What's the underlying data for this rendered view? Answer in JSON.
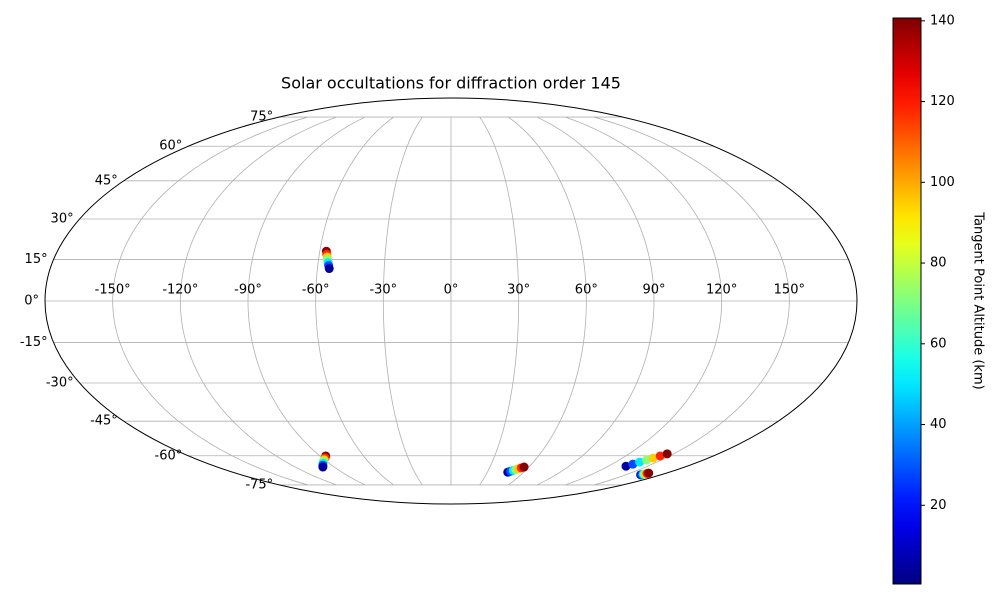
{
  "chart_data": {
    "type": "scatter",
    "projection": "mollweide",
    "title": "Solar occultations for diffraction order 145",
    "grid": true,
    "xlim": [
      -180,
      180
    ],
    "ylim": [
      -90,
      90
    ],
    "xticks": [
      {
        "value": -150,
        "label": "-150°"
      },
      {
        "value": -120,
        "label": "-120°"
      },
      {
        "value": -90,
        "label": "-90°"
      },
      {
        "value": -60,
        "label": "-60°"
      },
      {
        "value": -30,
        "label": "-30°"
      },
      {
        "value": 0,
        "label": "0°"
      },
      {
        "value": 30,
        "label": "30°"
      },
      {
        "value": 60,
        "label": "60°"
      },
      {
        "value": 90,
        "label": "90°"
      },
      {
        "value": 120,
        "label": "120°"
      },
      {
        "value": 150,
        "label": "150°"
      }
    ],
    "yticks": [
      {
        "value": -75,
        "label": "-75°"
      },
      {
        "value": -60,
        "label": "-60°"
      },
      {
        "value": -45,
        "label": "-45°"
      },
      {
        "value": -30,
        "label": "-30°"
      },
      {
        "value": -15,
        "label": "-15°"
      },
      {
        "value": 0,
        "label": "0°"
      },
      {
        "value": 15,
        "label": "15°"
      },
      {
        "value": 30,
        "label": "30°"
      },
      {
        "value": 45,
        "label": "45°"
      },
      {
        "value": 60,
        "label": "60°"
      },
      {
        "value": 75,
        "label": "75°"
      }
    ],
    "colormap": "jet",
    "colorbar": {
      "label": "Tangent Point Altitude (km)",
      "clim": [
        0.5,
        140.7
      ],
      "ticks": [
        20,
        40,
        60,
        80,
        100,
        120,
        140
      ]
    },
    "series": [
      {
        "x": [
          -57,
          -56.6,
          -56.2,
          -55.9,
          -55.5,
          -55.1,
          -54.7
        ],
        "y": [
          18,
          16.9,
          15.9,
          14.9,
          13.8,
          12.8,
          11.7
        ],
        "c": [
          140,
          118,
          95,
          72,
          50,
          28,
          5
        ]
      },
      {
        "x": [
          -86,
          -88,
          -90.3,
          -92.4,
          -94.5,
          -96.6,
          -98.7
        ],
        "y": [
          -60.1,
          -61,
          -61.9,
          -62.7,
          -63.6,
          -64.5,
          -65.4
        ],
        "c": [
          140,
          118,
          95,
          72,
          50,
          28,
          5
        ]
      },
      {
        "x": [
          46.8,
          48.4,
          50,
          51.6,
          53.1,
          54.7,
          56.3
        ],
        "y": [
          -68,
          -67.6,
          -67.1,
          -66.7,
          -66.3,
          -65.8,
          -65.4
        ],
        "c": [
          5,
          28,
          50,
          72,
          95,
          118,
          140
        ]
      },
      {
        "x": [
          133.5,
          135.5,
          137.5,
          139.5,
          141.6,
          143.6,
          145.6
        ],
        "y": [
          -65,
          -64,
          -63,
          -62,
          -61.1,
          -60.1,
          -59.1
        ],
        "c": [
          5,
          28,
          50,
          72,
          95,
          118,
          140
        ]
      },
      {
        "x": [
          162.8,
          163.2,
          163.6,
          164.1,
          164.5,
          164.9,
          165.3
        ],
        "y": [
          -69.4,
          -69.3,
          -69.1,
          -69,
          -68.8,
          -68.7,
          -68.5
        ],
        "c": [
          5,
          28,
          50,
          72,
          95,
          118,
          140
        ]
      }
    ]
  }
}
